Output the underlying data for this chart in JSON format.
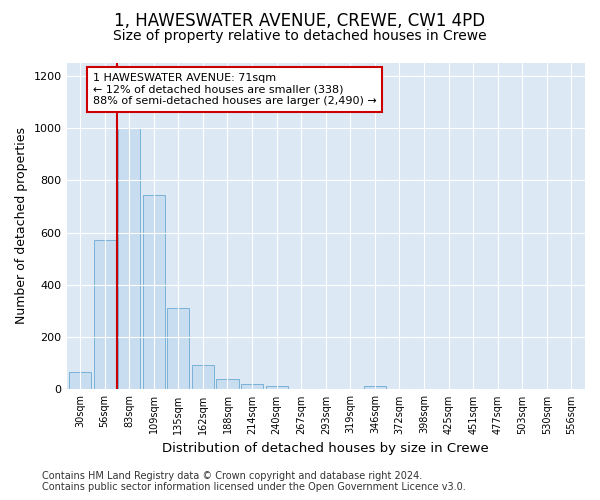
{
  "title": "1, HAWESWATER AVENUE, CREWE, CW1 4PD",
  "subtitle": "Size of property relative to detached houses in Crewe",
  "xlabel": "Distribution of detached houses by size in Crewe",
  "ylabel": "Number of detached properties",
  "bar_labels": [
    "30sqm",
    "56sqm",
    "83sqm",
    "109sqm",
    "135sqm",
    "162sqm",
    "188sqm",
    "214sqm",
    "240sqm",
    "267sqm",
    "293sqm",
    "319sqm",
    "346sqm",
    "372sqm",
    "398sqm",
    "425sqm",
    "451sqm",
    "477sqm",
    "503sqm",
    "530sqm",
    "556sqm"
  ],
  "bar_values": [
    65,
    570,
    1000,
    745,
    310,
    95,
    38,
    22,
    14,
    0,
    0,
    0,
    14,
    0,
    0,
    0,
    0,
    0,
    0,
    0,
    0
  ],
  "bar_color": "#c9ddf0",
  "bar_edge_color": "#6aaad4",
  "annotation_text": "1 HAWESWATER AVENUE: 71sqm\n← 12% of detached houses are smaller (338)\n88% of semi-detached houses are larger (2,490) →",
  "annotation_box_facecolor": "#ffffff",
  "annotation_box_edgecolor": "#cc0000",
  "vline_color": "#cc0000",
  "vline_x_idx": 1.5,
  "ylim": [
    0,
    1250
  ],
  "yticks": [
    0,
    200,
    400,
    600,
    800,
    1000,
    1200
  ],
  "footer_line1": "Contains HM Land Registry data © Crown copyright and database right 2024.",
  "footer_line2": "Contains public sector information licensed under the Open Government Licence v3.0.",
  "plot_bg_color": "#dce9f5",
  "title_fontsize": 12,
  "subtitle_fontsize": 10,
  "annotation_fontsize": 8,
  "footer_fontsize": 7,
  "ylabel_fontsize": 9,
  "xlabel_fontsize": 9.5
}
